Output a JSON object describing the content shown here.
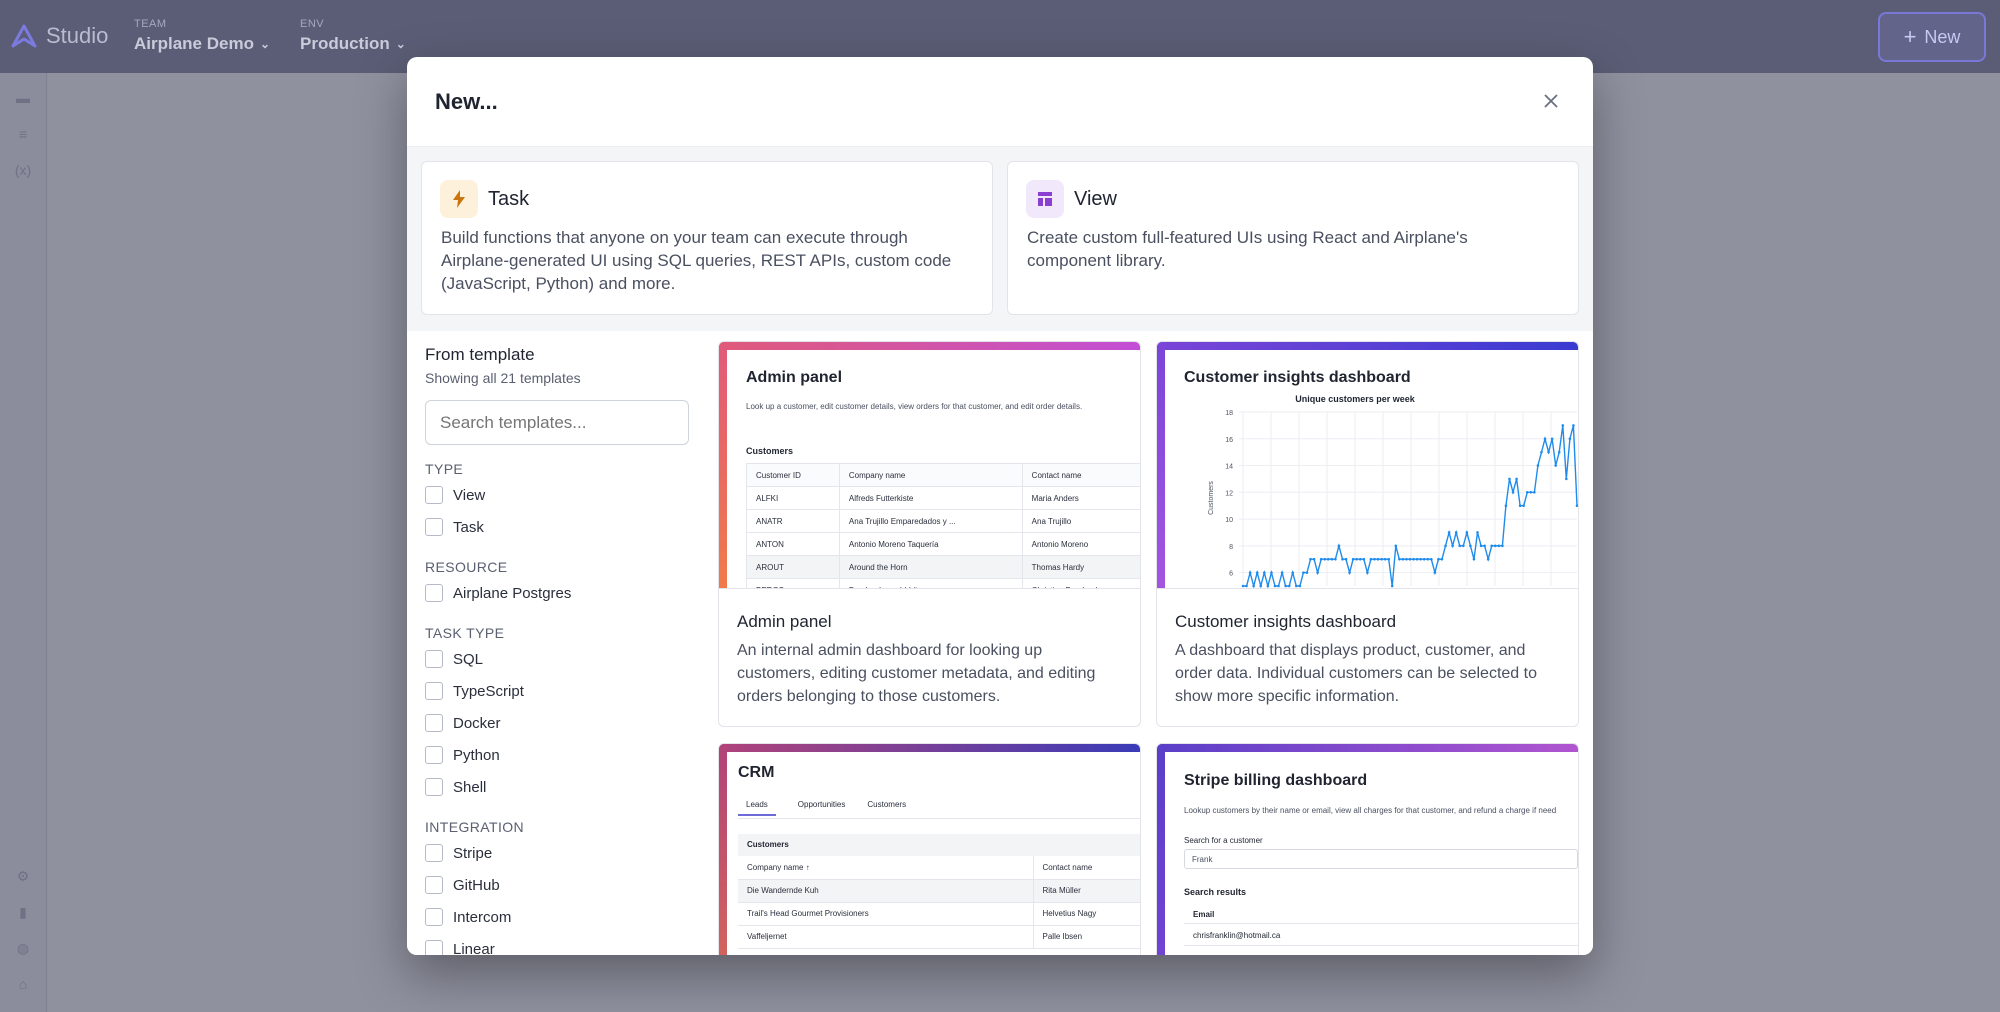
{
  "app": {
    "brand": "Studio",
    "team_label": "TEAM",
    "team_value": "Airplane Demo",
    "env_label": "ENV",
    "env_value": "Production",
    "new_button": "New"
  },
  "modal": {
    "title": "New...",
    "kinds": [
      {
        "title": "Task",
        "desc": "Build functions that anyone on your team can execute through Airplane-generated UI using SQL queries, REST APIs, custom code (JavaScript, Python) and more.",
        "icon": "bolt-icon"
      },
      {
        "title": "View",
        "desc": "Create custom full-featured UIs using React and Airplane's component library.",
        "icon": "layout-icon"
      }
    ],
    "filters": {
      "title": "From template",
      "subtitle": "Showing all 21 templates",
      "search_placeholder": "Search templates...",
      "type_label": "TYPE",
      "type_items": [
        "View",
        "Task"
      ],
      "resource_label": "RESOURCE",
      "resource_items": [
        "Airplane Postgres"
      ],
      "task_type_label": "TASK TYPE",
      "task_type_items": [
        "SQL",
        "TypeScript",
        "Docker",
        "Python",
        "Shell"
      ],
      "integration_label": "INTEGRATION",
      "integration_items": [
        "Stripe",
        "GitHub",
        "Intercom",
        "Linear"
      ]
    },
    "templates": [
      {
        "name": "Admin panel",
        "desc": "An internal admin dashboard for looking up customers, editing customer metadata, and editing orders belonging to those customers.",
        "preview": {
          "title": "Admin panel",
          "subtitle": "Look up a customer, edit customer details, view orders for that customer, and edit order details.",
          "section": "Customers",
          "headers": [
            "Customer ID",
            "Company name",
            "Contact name"
          ],
          "rows": [
            [
              "ALFKI",
              "Alfreds Futterkiste",
              "Maria Anders"
            ],
            [
              "ANATR",
              "Ana Trujillo Emparedados y ...",
              "Ana Trujillo"
            ],
            [
              "ANTON",
              "Antonio Moreno Taquería",
              "Antonio Moreno"
            ],
            [
              "AROUT",
              "Around the Horn",
              "Thomas Hardy"
            ],
            [
              "BERGS",
              "Berglunds snabbköp",
              "Christina Berglund"
            ]
          ]
        }
      },
      {
        "name": "Customer insights dashboard",
        "desc": "A dashboard that displays product, customer, and order data. Individual customers can be selected to show more specific information.",
        "preview": {
          "title": "Customer insights dashboard"
        }
      },
      {
        "name": "CRM",
        "preview": {
          "title": "CRM",
          "tabs": [
            "Leads",
            "Opportunities",
            "Customers"
          ],
          "section": "Customers",
          "headers": [
            "Company name ↑",
            "Contact name"
          ],
          "rows": [
            [
              "Die Wandernde Kuh",
              "Rita Müller"
            ],
            [
              "Trail's Head Gourmet Provisioners",
              "Helvetius Nagy"
            ],
            [
              "Vaffeljernet",
              "Palle Ibsen"
            ]
          ]
        }
      },
      {
        "name": "Stripe billing dashboard",
        "preview": {
          "title": "Stripe billing dashboard",
          "subtitle": "Lookup customers by their name or email, view all charges for that customer, and refund a charge if need",
          "search_label": "Search for a customer",
          "search_value": "Frank",
          "results_label": "Search results",
          "col": "Email",
          "row": "chrisfranklin@hotmail.ca"
        }
      }
    ]
  },
  "chart_data": {
    "type": "line",
    "title": "Unique customers per week",
    "ylabel": "Customers",
    "xlabel": "",
    "ylim": [
      5,
      18
    ],
    "y_ticks": [
      6,
      8,
      10,
      12,
      14,
      16,
      18
    ],
    "values": [
      5,
      5,
      6,
      5,
      6,
      5,
      6,
      5,
      6,
      5,
      5,
      6,
      5,
      5,
      6,
      5,
      5,
      6,
      6,
      7,
      7,
      6,
      7,
      7,
      7,
      7,
      7,
      8,
      7,
      7,
      6,
      7,
      7,
      7,
      7,
      6,
      7,
      7,
      7,
      7,
      7,
      7,
      5,
      8,
      7,
      7,
      7,
      7,
      7,
      7,
      7,
      7,
      7,
      7,
      6,
      7,
      7,
      8,
      9,
      8,
      9,
      8,
      8,
      9,
      8,
      7,
      9,
      8,
      8,
      7,
      8,
      8,
      8,
      8,
      11,
      13,
      12,
      13,
      11,
      11,
      12,
      12,
      12,
      14,
      15,
      16,
      15,
      16,
      14,
      15,
      17,
      13,
      16,
      17,
      11
    ],
    "color": "#1f8ceb"
  },
  "colors": {
    "accent": "#6c6bd8",
    "task_icon_bg": "#fdf1dc",
    "task_icon": "#c97510",
    "view_icon_bg": "#f1e8fb",
    "view_icon": "#8a3fd1"
  }
}
